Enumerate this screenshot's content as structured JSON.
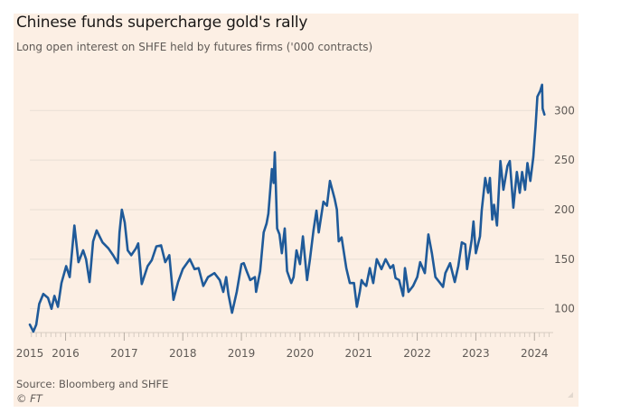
{
  "chart_data": {
    "type": "line",
    "title": "Chinese funds supercharge gold's rally",
    "subtitle": "Long open interest on SHFE held by futures firms ('000 contracts)",
    "source": "Source: Bloomberg and SHFE",
    "credit": "© FT",
    "xlabel": "",
    "ylabel": "",
    "xlim": [
      2015.39,
      2024.32
    ],
    "ylim": [
      76,
      334
    ],
    "x_ticks": [
      2015,
      2016,
      2017,
      2018,
      2019,
      2020,
      2021,
      2022,
      2023,
      2024
    ],
    "x_tick_labels": [
      "2015",
      "2016",
      "2017",
      "2018",
      "2019",
      "2020",
      "2021",
      "2022",
      "2023",
      "2024"
    ],
    "y_ticks": [
      100,
      150,
      200,
      250,
      300
    ],
    "y_tick_labels": [
      "100",
      "150",
      "200",
      "250",
      "300"
    ],
    "y_axis_side": "right",
    "grid": true,
    "line_color": "#1f5a99",
    "background": "#fcefe4",
    "series": [
      {
        "x": [
          2015.39,
          2015.45,
          2015.5,
          2015.55,
          2015.62,
          2015.7,
          2015.76,
          2015.81,
          2015.87,
          2015.93,
          2016.01,
          2016.07,
          2016.15,
          2016.22,
          2016.3,
          2016.35,
          2016.41,
          2016.47,
          2016.53,
          2016.63,
          2016.73,
          2016.81,
          2016.89,
          2016.92,
          2016.96,
          2017.01,
          2017.06,
          2017.12,
          2017.2,
          2017.24,
          2017.3,
          2017.4,
          2017.47,
          2017.55,
          2017.63,
          2017.7,
          2017.77,
          2017.84,
          2017.92,
          2018.0,
          2018.12,
          2018.2,
          2018.27,
          2018.35,
          2018.43,
          2018.54,
          2018.63,
          2018.69,
          2018.74,
          2018.78,
          2018.84,
          2018.92,
          2019.0,
          2019.04,
          2019.09,
          2019.15,
          2019.23,
          2019.25,
          2019.32,
          2019.38,
          2019.43,
          2019.46,
          2019.52,
          2019.55,
          2019.57,
          2019.61,
          2019.65,
          2019.69,
          2019.74,
          2019.78,
          2019.85,
          2019.89,
          2019.94,
          2020.0,
          2020.05,
          2020.12,
          2020.17,
          2020.23,
          2020.28,
          2020.32,
          2020.4,
          2020.46,
          2020.51,
          2020.59,
          2020.63,
          2020.66,
          2020.71,
          2020.79,
          2020.85,
          2020.92,
          2020.97,
          2021.02,
          2021.05,
          2021.08,
          2021.13,
          2021.19,
          2021.25,
          2021.31,
          2021.39,
          2021.46,
          2021.54,
          2021.59,
          2021.63,
          2021.69,
          2021.76,
          2021.79,
          2021.85,
          2021.93,
          2022.0,
          2022.05,
          2022.13,
          2022.19,
          2022.25,
          2022.31,
          2022.39,
          2022.44,
          2022.48,
          2022.56,
          2022.64,
          2022.7,
          2022.76,
          2022.82,
          2022.85,
          2022.93,
          2022.96,
          2023.0,
          2023.07,
          2023.1,
          2023.16,
          2023.21,
          2023.24,
          2023.28,
          2023.31,
          2023.36,
          2023.42,
          2023.47,
          2023.54,
          2023.58,
          2023.64,
          2023.7,
          2023.75,
          2023.79,
          2023.84,
          2023.88,
          2023.93,
          2023.98,
          2024.02,
          2024.05,
          2024.1,
          2024.13,
          2024.14,
          2024.17
        ],
        "y": [
          84,
          77,
          84,
          105,
          115,
          111,
          100,
          113,
          102,
          126,
          143,
          132,
          184,
          147,
          159,
          150,
          127,
          168,
          179,
          167,
          161,
          154,
          146,
          177,
          200,
          187,
          159,
          154,
          161,
          166,
          125,
          143,
          149,
          163,
          164,
          147,
          154,
          109,
          127,
          140,
          150,
          140,
          141,
          123,
          132,
          136,
          129,
          117,
          132,
          114,
          96,
          117,
          145,
          146,
          138,
          129,
          132,
          117,
          138,
          177,
          186,
          196,
          241,
          227,
          258,
          181,
          175,
          156,
          181,
          138,
          126,
          132,
          159,
          145,
          173,
          129,
          150,
          179,
          199,
          177,
          208,
          204,
          229,
          211,
          200,
          168,
          172,
          141,
          126,
          126,
          102,
          117,
          129,
          126,
          123,
          141,
          126,
          150,
          140,
          150,
          141,
          144,
          131,
          129,
          113,
          141,
          117,
          123,
          132,
          147,
          136,
          175,
          156,
          132,
          126,
          122,
          136,
          146,
          127,
          143,
          167,
          165,
          140,
          170,
          188,
          156,
          173,
          199,
          232,
          217,
          232,
          190,
          205,
          184,
          249,
          220,
          244,
          249,
          202,
          238,
          217,
          238,
          220,
          247,
          229,
          253,
          284,
          314,
          320,
          326,
          302,
          296
        ]
      }
    ]
  }
}
